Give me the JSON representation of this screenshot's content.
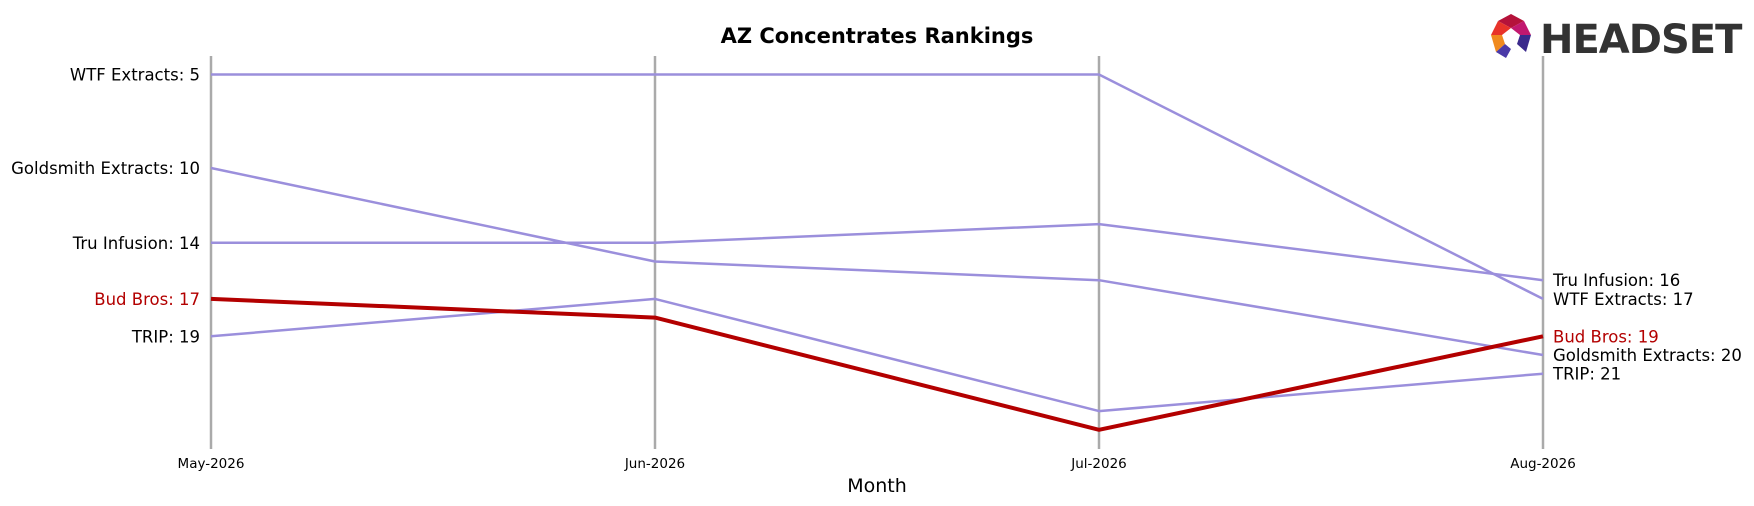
{
  "brand": {
    "name": "HEADSET"
  },
  "chart_data": {
    "type": "line",
    "title": "AZ Concentrates Rankings",
    "xlabel": "Month",
    "ylabel": "",
    "categories": [
      "May-2026",
      "Jun-2026",
      "Jul-2026",
      "Aug-2026"
    ],
    "y_axis": {
      "inverted": true,
      "range": [
        4,
        24
      ]
    },
    "grid": false,
    "series": [
      {
        "name": "WTF Extracts",
        "values": [
          5,
          5,
          5,
          17
        ],
        "color": "#9b8fdc",
        "highlight": false
      },
      {
        "name": "Goldsmith Extracts",
        "values": [
          10,
          15,
          16,
          20
        ],
        "color": "#9b8fdc",
        "highlight": false
      },
      {
        "name": "Tru Infusion",
        "values": [
          14,
          14,
          13,
          16
        ],
        "color": "#9b8fdc",
        "highlight": false
      },
      {
        "name": "TRIP",
        "values": [
          19,
          17,
          23,
          21
        ],
        "color": "#9b8fdc",
        "highlight": false
      },
      {
        "name": "Bud Bros",
        "values": [
          17,
          18,
          24,
          19
        ],
        "color": "#b30000",
        "highlight": true
      }
    ]
  }
}
